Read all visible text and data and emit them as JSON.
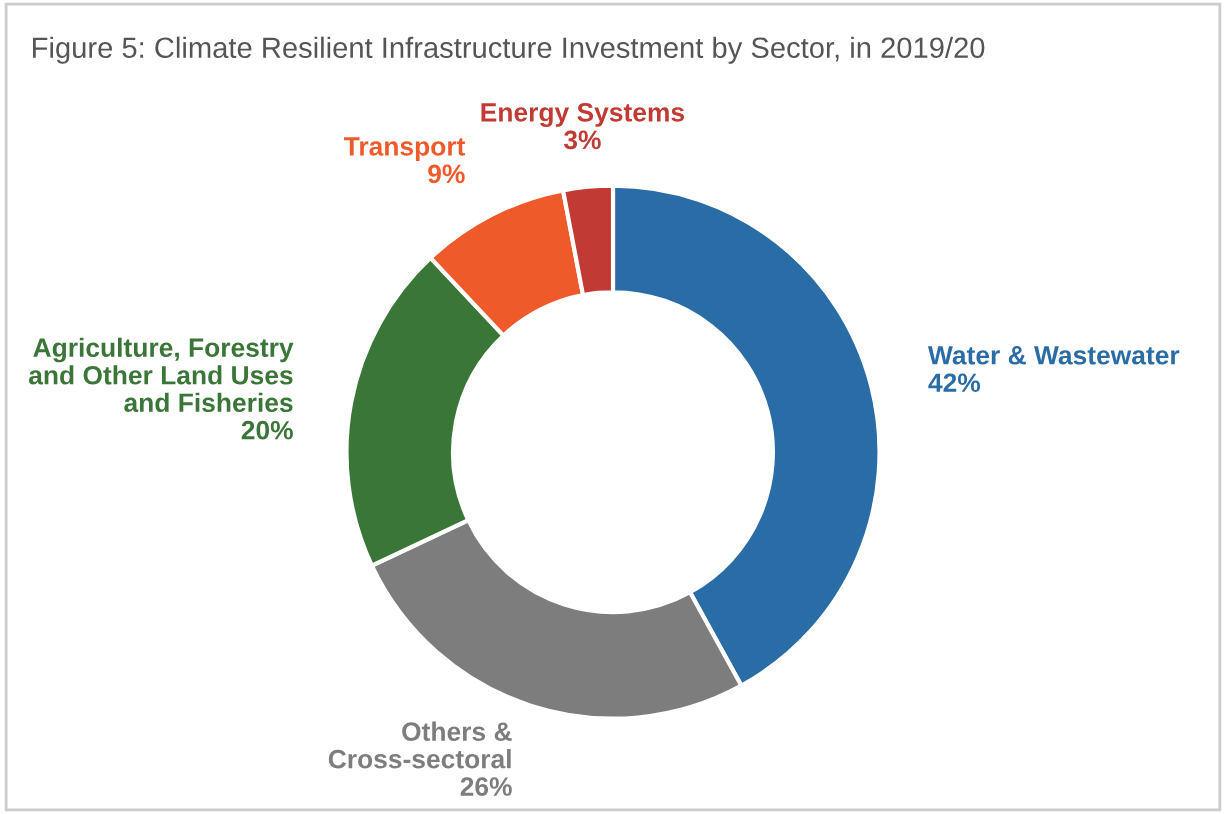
{
  "chart_data": {
    "type": "donut",
    "title": "Figure 5: Climate Resilient Infrastructure Investment by Sector, in 2019/20",
    "categories": [
      "Water & Wastewater",
      "Others &\nCross-sectoral",
      "Agriculture, Forestry\nand Other Land Uses\nand Fisheries",
      "Transport",
      "Energy Systems"
    ],
    "values": [
      42,
      26,
      20,
      9,
      3
    ],
    "value_labels": [
      "42%",
      "26%",
      "20%",
      "9%",
      "3%"
    ],
    "colors": [
      "#2a6ca6",
      "#7d7d7d",
      "#3b7639",
      "#ef5a2a",
      "#c13a33"
    ],
    "legend": false
  }
}
